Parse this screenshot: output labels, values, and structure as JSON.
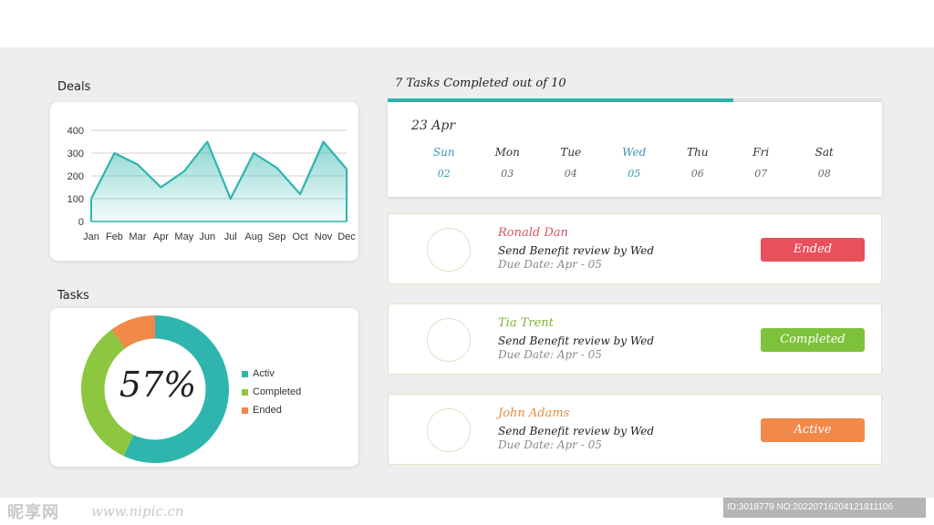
{
  "deals": {
    "title": "Deals"
  },
  "tasks_section": {
    "title": "Tasks",
    "center_label": "57%",
    "legend": [
      "Activ",
      "Completed",
      "Ended"
    ]
  },
  "chart_data": [
    {
      "type": "area",
      "title": "Deals",
      "categories": [
        "Jan",
        "Feb",
        "Mar",
        "Apr",
        "May",
        "Jun",
        "Jul",
        "Aug",
        "Sep",
        "Oct",
        "Nov",
        "Dec"
      ],
      "series": [
        {
          "values": [
            100,
            300,
            250,
            150,
            220,
            350,
            100,
            300,
            235,
            120,
            350,
            230
          ]
        }
      ],
      "y_ticks": [
        0,
        100,
        200,
        300,
        400
      ],
      "ylim": [
        0,
        400
      ],
      "grid": true,
      "color": "#2eb5ad"
    },
    {
      "type": "pie",
      "variant": "donut",
      "title": "Tasks",
      "labels": [
        "Activ",
        "Completed",
        "Ended"
      ],
      "values": [
        57,
        33,
        10
      ],
      "colors": [
        "#2eb5ad",
        "#8dc63f",
        "#f0894a"
      ],
      "legend": "right"
    }
  ],
  "progress": {
    "label": "7 Tasks Completed out of 10",
    "completed": 7,
    "total": 10,
    "color": "#2eb5ad"
  },
  "calendar": {
    "date_label": "23 Apr",
    "days": [
      {
        "name": "Sun",
        "num": "02",
        "highlight": true
      },
      {
        "name": "Mon",
        "num": "03",
        "highlight": false
      },
      {
        "name": "Tue",
        "num": "04",
        "highlight": false
      },
      {
        "name": "Wed",
        "num": "05",
        "highlight": true
      },
      {
        "name": "Thu",
        "num": "06",
        "highlight": false
      },
      {
        "name": "Fri",
        "num": "07",
        "highlight": false
      },
      {
        "name": "Sat",
        "num": "08",
        "highlight": false
      }
    ]
  },
  "task_cards": [
    {
      "name": "Ronald Dan",
      "name_color": "#e05060",
      "desc": "Send Benefit review by Wed",
      "due": "Due Date: Apr - 05",
      "status": "Ended",
      "status_color": "#e8505b"
    },
    {
      "name": "Tia Trent",
      "name_color": "#7ab52e",
      "desc": "Send Benefit review by Wed",
      "due": "Due Date: Apr - 05",
      "status": "Completed",
      "status_color": "#7cc23a"
    },
    {
      "name": "John Adams",
      "name_color": "#ea8a3c",
      "desc": "Send Benefit review by Wed",
      "due": "Due Date: Apr - 05",
      "status": "Active",
      "status_color": "#f0894a"
    }
  ],
  "watermark": {
    "logo": "昵享网",
    "site": "www.nipic.cn",
    "id": "ID:3018779 NO:20220716204121811106"
  }
}
